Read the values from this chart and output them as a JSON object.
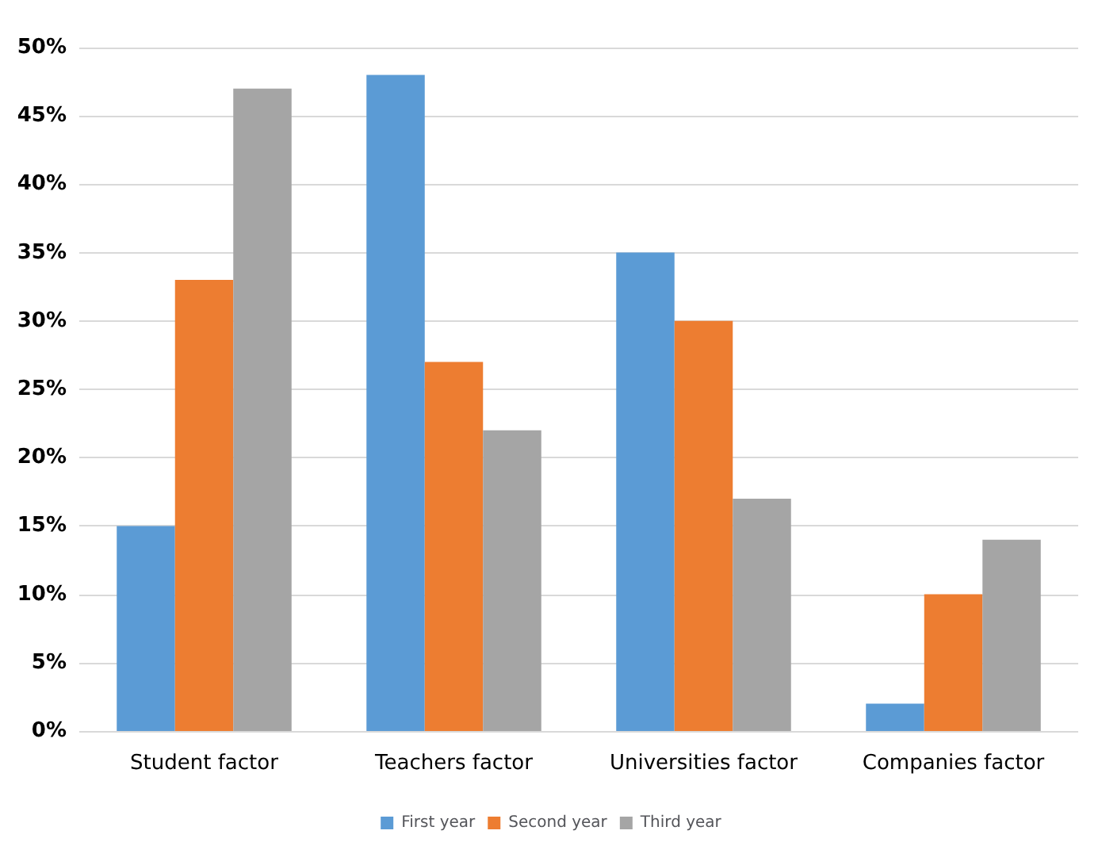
{
  "chart_data": {
    "type": "bar",
    "categories": [
      "Student factor",
      "Teachers factor",
      "Universities factor",
      "Companies factor"
    ],
    "series": [
      {
        "name": "First year",
        "color": "#5b9bd5",
        "values": [
          15,
          48,
          35,
          2
        ]
      },
      {
        "name": "Second year",
        "color": "#ed7d31",
        "values": [
          33,
          27,
          30,
          10
        ]
      },
      {
        "name": "Third year",
        "color": "#a5a5a5",
        "values": [
          47,
          22,
          17,
          14
        ]
      }
    ],
    "ylim": [
      0,
      50
    ],
    "yticks": [
      {
        "value": 0,
        "label": "0%"
      },
      {
        "value": 5,
        "label": "5%"
      },
      {
        "value": 10,
        "label": "10%"
      },
      {
        "value": 15,
        "label": "15%"
      },
      {
        "value": 20,
        "label": "20%"
      },
      {
        "value": 25,
        "label": "25%"
      },
      {
        "value": 30,
        "label": "30%"
      },
      {
        "value": 35,
        "label": "35%"
      },
      {
        "value": 40,
        "label": "40%"
      },
      {
        "value": 45,
        "label": "45%"
      },
      {
        "value": 50,
        "label": "50%"
      }
    ],
    "grid": "y",
    "legend": "bottom"
  }
}
